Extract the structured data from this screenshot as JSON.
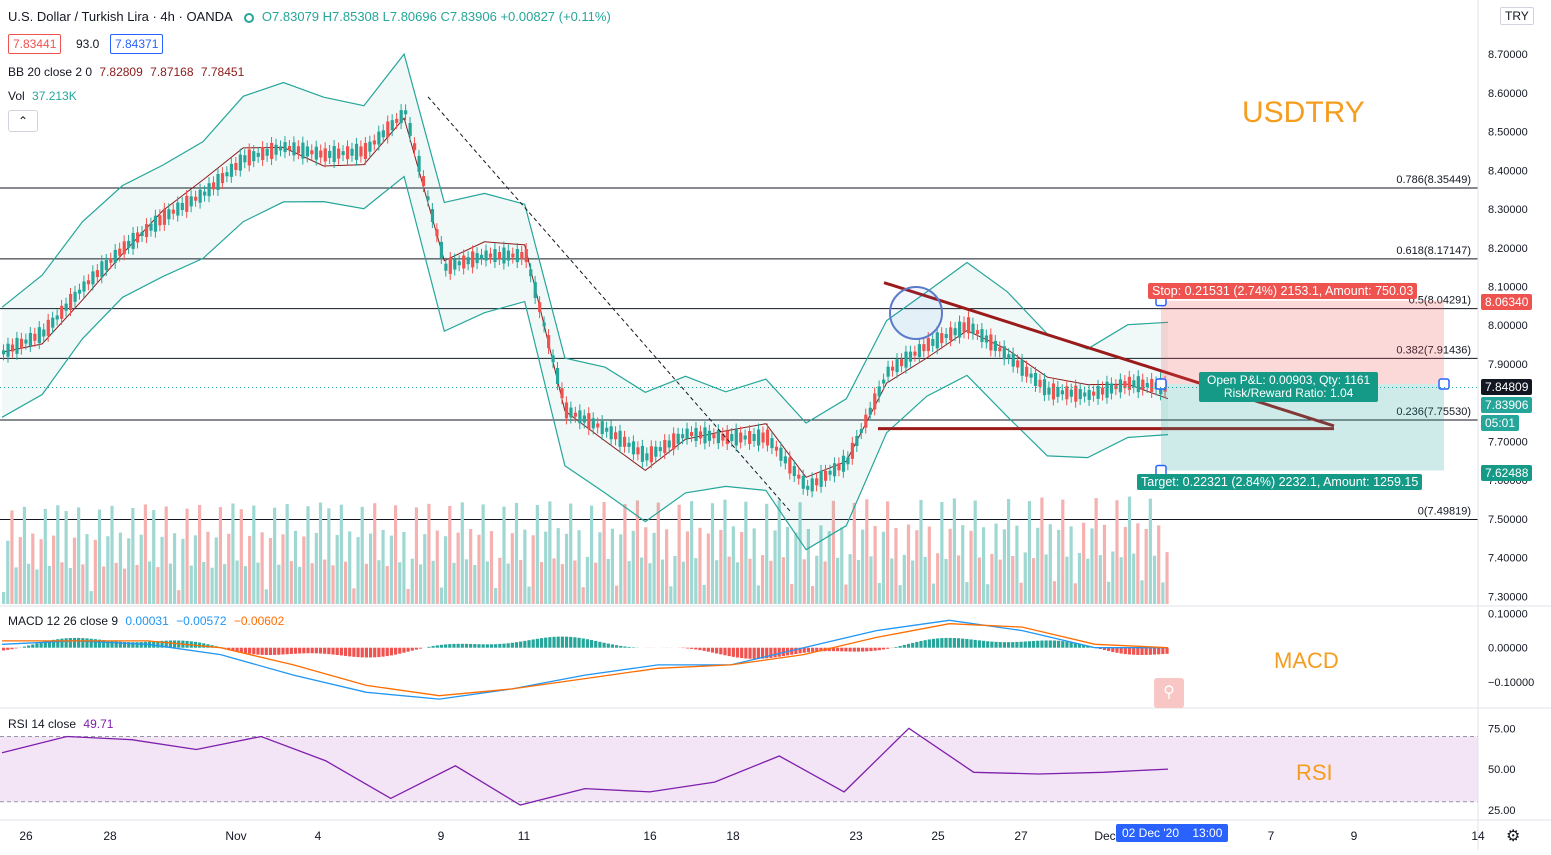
{
  "header": {
    "symbol": "U.S. Dollar / Turkish Lira · 4h · OANDA",
    "ohlc": "O7.83079 H7.85308 L7.80696 C7.83906 +0.00827 (+0.11%)",
    "bid": "7.83441",
    "spread": "93.0",
    "ask": "7.84371"
  },
  "indicators": {
    "bb_label": "BB 20 close 2 0",
    "bb_values": [
      "7.82809",
      "7.87168",
      "7.78451"
    ],
    "vol_label": "Vol",
    "vol_value": "37.213K",
    "collapse_glyph": "⌃",
    "macd_label": "MACD 12 26 close 9",
    "macd_values": [
      "0.00031",
      "−0.00572",
      "−0.00602"
    ],
    "rsi_label": "RSI 14 close",
    "rsi_value": "49.71"
  },
  "watermarks": {
    "main": "USDTRY",
    "macd": "MACD",
    "rsi": "RSI"
  },
  "currency_badge": "TRY",
  "position": {
    "stop_label": "Stop: 0.21531 (2.74%) 2153.1, Amount: 750.03",
    "open_pl_label": "Open P&L: 0.00903, Qty: 1161",
    "rr_label": "Risk/Reward Ratio: 1.04",
    "target_label": "Target: 0.22321 (2.84%) 2232.1, Amount: 1259.15"
  },
  "price_tags": {
    "stop": "8.06340",
    "current_high": "7.84809",
    "last": "7.83906",
    "countdown": "05:01",
    "target": "7.62488"
  },
  "fib_levels": [
    {
      "label": "0.786(8.35449)",
      "value": 8.35449
    },
    {
      "label": "0.618(8.17147)",
      "value": 8.17147
    },
    {
      "label": "0.5(8.04291)",
      "value": 8.04291
    },
    {
      "label": "0.382(7.91436)",
      "value": 7.91436
    },
    {
      "label": "0.236(7.75530)",
      "value": 7.7553
    },
    {
      "label": "0(7.49819)",
      "value": 7.49819
    }
  ],
  "time_axis": {
    "labels": [
      "26",
      "28",
      "Nov",
      "4",
      "9",
      "11",
      "16",
      "18",
      "23",
      "25",
      "27",
      "Dec",
      "7",
      "9",
      "14"
    ],
    "crosshair_label": "02 Dec '20",
    "crosshair_time": "13:00"
  },
  "colors": {
    "up": "#26a69a",
    "down": "#ef5350",
    "bb": "#26a69a",
    "bb_basis": "#8b1a1a",
    "trendline": "#9b1b1b",
    "macd_line": "#2196f3",
    "signal_line": "#ff6d00",
    "rsi_line": "#7e1fad",
    "watermark": "#f59d1f"
  },
  "chart_data": [
    {
      "type": "candlestick",
      "title": "U.S. Dollar / Turkish Lira · 4h · OANDA",
      "y_axis_ticks": [
        "8.70000",
        "8.60000",
        "8.50000",
        "8.40000",
        "8.30000",
        "8.20000",
        "8.10000",
        "8.00000",
        "7.90000",
        "7.80000",
        "7.70000",
        "7.60000",
        "7.50000",
        "7.40000",
        "7.30000"
      ],
      "ylim": [
        7.28,
        8.84
      ],
      "close_path": [
        {
          "x": "Oct 26",
          "y": 7.93
        },
        {
          "x": "Oct 27",
          "y": 7.98
        },
        {
          "x": "Oct 28",
          "y": 8.1
        },
        {
          "x": "Oct 29",
          "y": 8.2
        },
        {
          "x": "Oct 30",
          "y": 8.28
        },
        {
          "x": "Nov 2",
          "y": 8.34
        },
        {
          "x": "Nov 3",
          "y": 8.43
        },
        {
          "x": "Nov 4",
          "y": 8.46
        },
        {
          "x": "Nov 5",
          "y": 8.44
        },
        {
          "x": "Nov 6",
          "y": 8.45
        },
        {
          "x": "Nov 8",
          "y": 8.55
        },
        {
          "x": "Nov 9",
          "y": 8.15
        },
        {
          "x": "Nov 10",
          "y": 8.18
        },
        {
          "x": "Nov 11",
          "y": 8.18
        },
        {
          "x": "Nov 12",
          "y": 7.78
        },
        {
          "x": "Nov 13",
          "y": 7.73
        },
        {
          "x": "Nov 16",
          "y": 7.66
        },
        {
          "x": "Nov 17",
          "y": 7.72
        },
        {
          "x": "Nov 18",
          "y": 7.71
        },
        {
          "x": "Nov 19",
          "y": 7.71
        },
        {
          "x": "Nov 20",
          "y": 7.58
        },
        {
          "x": "Nov 20b",
          "y": 7.65
        },
        {
          "x": "Nov 23",
          "y": 7.88
        },
        {
          "x": "Nov 24",
          "y": 7.95
        },
        {
          "x": "Nov 25",
          "y": 8.0
        },
        {
          "x": "Nov 26",
          "y": 7.92
        },
        {
          "x": "Nov 27",
          "y": 7.83
        },
        {
          "x": "Nov 30",
          "y": 7.82
        },
        {
          "x": "Dec 1",
          "y": 7.85
        },
        {
          "x": "Dec 2",
          "y": 7.84
        }
      ],
      "fib_retracement": {
        "from": 8.59,
        "to": 7.49819
      },
      "descending_trendline": {
        "from": {
          "x": "Nov 23",
          "y": 8.11
        },
        "to": {
          "x": "Dec 8",
          "y": 7.74
        }
      },
      "support_line": 7.733,
      "position": {
        "entry": 7.84809,
        "stop": 8.0634,
        "target": 7.62488
      }
    },
    {
      "type": "line",
      "title": "MACD 12 26 close 9",
      "y_axis_ticks": [
        "0.10000",
        "0.00000",
        "−0.10000"
      ],
      "ylim": [
        -0.17,
        0.11
      ],
      "series": [
        {
          "name": "MACD",
          "values": [
            0.01,
            0.02,
            0.01,
            -0.02,
            -0.08,
            -0.13,
            -0.15,
            -0.12,
            -0.08,
            -0.05,
            -0.05,
            0.0,
            0.05,
            0.08,
            0.05,
            0.0,
            0.0
          ]
        },
        {
          "name": "Signal",
          "values": [
            0.02,
            0.02,
            0.02,
            0.0,
            -0.05,
            -0.11,
            -0.14,
            -0.12,
            -0.09,
            -0.06,
            -0.05,
            -0.02,
            0.03,
            0.07,
            0.06,
            0.01,
            0.0
          ]
        }
      ]
    },
    {
      "type": "line",
      "title": "RSI 14 close",
      "y_axis_ticks": [
        "75.00",
        "50.00",
        "25.00"
      ],
      "ylim": [
        20,
        85
      ],
      "band": [
        30,
        70
      ],
      "series": [
        {
          "name": "RSI",
          "values": [
            60,
            70,
            68,
            62,
            70,
            55,
            32,
            52,
            28,
            38,
            36,
            42,
            58,
            36,
            75,
            48,
            47,
            48,
            50
          ]
        }
      ]
    }
  ]
}
